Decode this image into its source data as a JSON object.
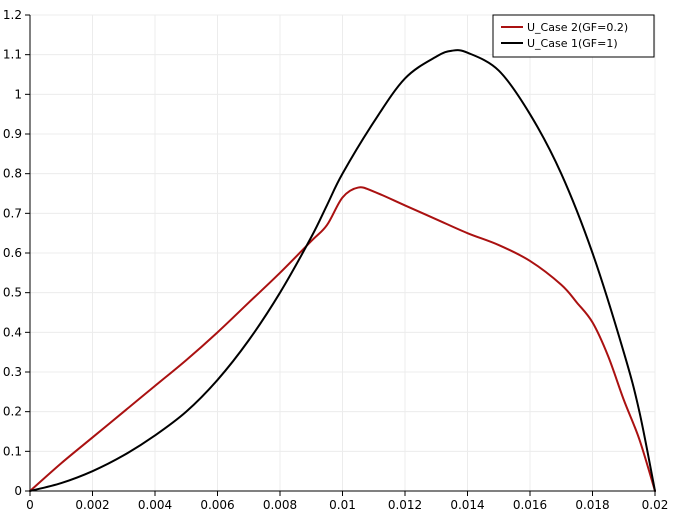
{
  "chart_data": {
    "type": "line",
    "title": "",
    "xlabel": "",
    "ylabel": "",
    "xlim": [
      0,
      0.02
    ],
    "ylim": [
      0,
      1.2
    ],
    "x_ticks": [
      "0",
      "0.002",
      "0.004",
      "0.006",
      "0.008",
      "0.01",
      "0.012",
      "0.014",
      "0.016",
      "0.018",
      "0.02"
    ],
    "y_ticks": [
      "0",
      "0.1",
      "0.2",
      "0.3",
      "0.4",
      "0.5",
      "0.6",
      "0.7",
      "0.8",
      "0.9",
      "1",
      "1.1",
      "1.2"
    ],
    "grid": true,
    "legend_position": "top-right",
    "series": [
      {
        "name": "U_Case 2(GF=0.2)",
        "color": "#aa1111",
        "x": [
          0,
          0.001,
          0.002,
          0.003,
          0.004,
          0.005,
          0.006,
          0.007,
          0.008,
          0.009,
          0.0095,
          0.01,
          0.0105,
          0.011,
          0.012,
          0.013,
          0.014,
          0.015,
          0.016,
          0.017,
          0.0175,
          0.018,
          0.0185,
          0.019,
          0.0195,
          0.02
        ],
        "y": [
          0,
          0.07,
          0.135,
          0.2,
          0.265,
          0.33,
          0.4,
          0.475,
          0.55,
          0.63,
          0.67,
          0.74,
          0.765,
          0.755,
          0.72,
          0.685,
          0.65,
          0.62,
          0.58,
          0.52,
          0.475,
          0.425,
          0.34,
          0.23,
          0.13,
          0.0
        ]
      },
      {
        "name": "U_Case 1(GF=1)",
        "color": "#000000",
        "x": [
          0,
          0.001,
          0.002,
          0.003,
          0.004,
          0.005,
          0.006,
          0.007,
          0.008,
          0.009,
          0.0095,
          0.01,
          0.011,
          0.012,
          0.013,
          0.0135,
          0.014,
          0.015,
          0.016,
          0.017,
          0.018,
          0.019,
          0.0195,
          0.02
        ],
        "y": [
          0,
          0.02,
          0.05,
          0.09,
          0.14,
          0.2,
          0.28,
          0.38,
          0.5,
          0.64,
          0.72,
          0.8,
          0.93,
          1.04,
          1.095,
          1.11,
          1.105,
          1.06,
          0.95,
          0.8,
          0.6,
          0.35,
          0.2,
          0.0
        ]
      }
    ]
  }
}
